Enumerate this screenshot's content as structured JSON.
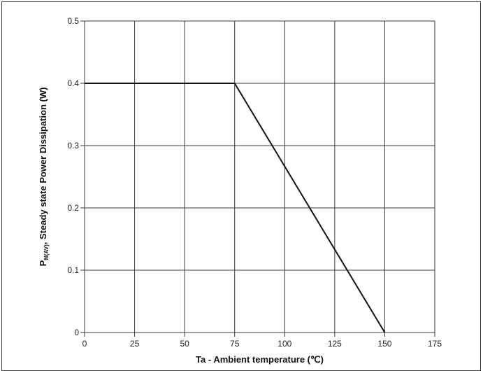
{
  "chart_data": {
    "type": "line",
    "title": "",
    "xlabel": "Ta - Ambient temperature (℃)",
    "ylabel_main": "P",
    "ylabel_sub": "M(AV)",
    "ylabel_rest": ", Steady state Power Dissipation (W)",
    "xlim": [
      0,
      175
    ],
    "ylim": [
      0,
      0.5
    ],
    "xticks": [
      0,
      25,
      50,
      75,
      100,
      125,
      150,
      175
    ],
    "xtick_labels": [
      "0",
      "25",
      "50",
      "75",
      "100",
      "125",
      "150",
      "175"
    ],
    "yticks": [
      0,
      0.1,
      0.2,
      0.3,
      0.4,
      0.5
    ],
    "ytick_labels": [
      "0",
      "0.1",
      "0.2",
      "0.3",
      "0.4",
      "0.5"
    ],
    "grid": true,
    "series": [
      {
        "x": [
          0,
          75,
          150
        ],
        "y": [
          0.4,
          0.4,
          0
        ]
      }
    ],
    "colors": {
      "line": "#111111",
      "grid": "#3a3a3a",
      "frame": "#3a3a3a"
    }
  }
}
